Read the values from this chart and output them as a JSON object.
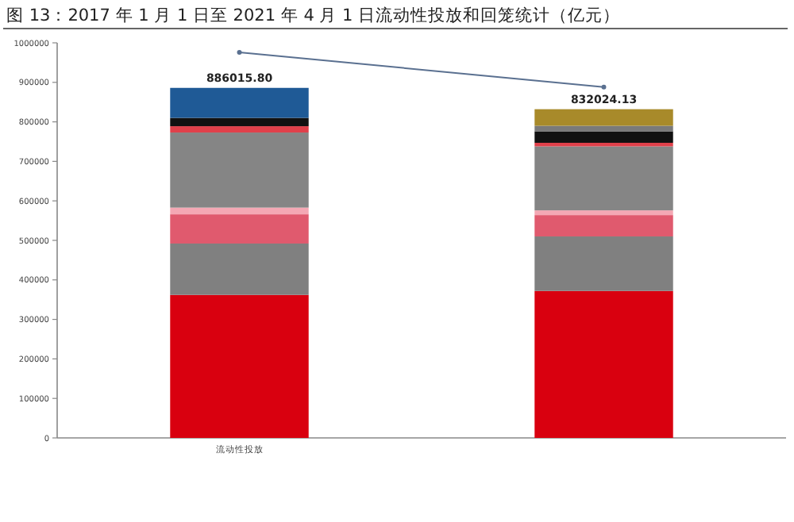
{
  "chart_data": {
    "type": "bar",
    "title": "图 13：2017 年 1 月 1 日至 2021 年 4 月 1 日流动性投放和回笼统计（亿元）",
    "categories": [
      "流动性投放",
      null
    ],
    "stacked": true,
    "ylim": [
      0,
      1000000
    ],
    "yticks": [
      0,
      100000,
      200000,
      300000,
      400000,
      500000,
      600000,
      700000,
      800000,
      900000,
      1000000
    ],
    "grid": false,
    "series": [
      {
        "color": "#d9000f",
        "values": [
          362000,
          372000
        ]
      },
      {
        "color": "#808080",
        "values": [
          130000,
          138000
        ]
      },
      {
        "color": "#e05a6e",
        "values": [
          74000,
          54000
        ]
      },
      {
        "color": "#f4a8b4",
        "values": [
          17000,
          12000
        ]
      },
      {
        "color": "#858585",
        "values": [
          190000,
          162000
        ]
      },
      {
        "color": "#e0404a",
        "values": [
          16000,
          9000
        ]
      },
      {
        "color": "#111111",
        "values": [
          21000,
          29000
        ]
      },
      {
        "color": "#1f5a96",
        "values": [
          76015.8,
          null
        ]
      },
      {
        "color": "#7a7a7a",
        "values": [
          null,
          14000
        ]
      },
      {
        "color": "#a88a2a",
        "values": [
          null,
          42024.13
        ]
      },
      {
        "type": "line",
        "color": "#5a7090",
        "marker": "circle",
        "values": [
          976000,
          888000
        ]
      }
    ],
    "totals": [
      "886015.80",
      "832024.13"
    ]
  }
}
